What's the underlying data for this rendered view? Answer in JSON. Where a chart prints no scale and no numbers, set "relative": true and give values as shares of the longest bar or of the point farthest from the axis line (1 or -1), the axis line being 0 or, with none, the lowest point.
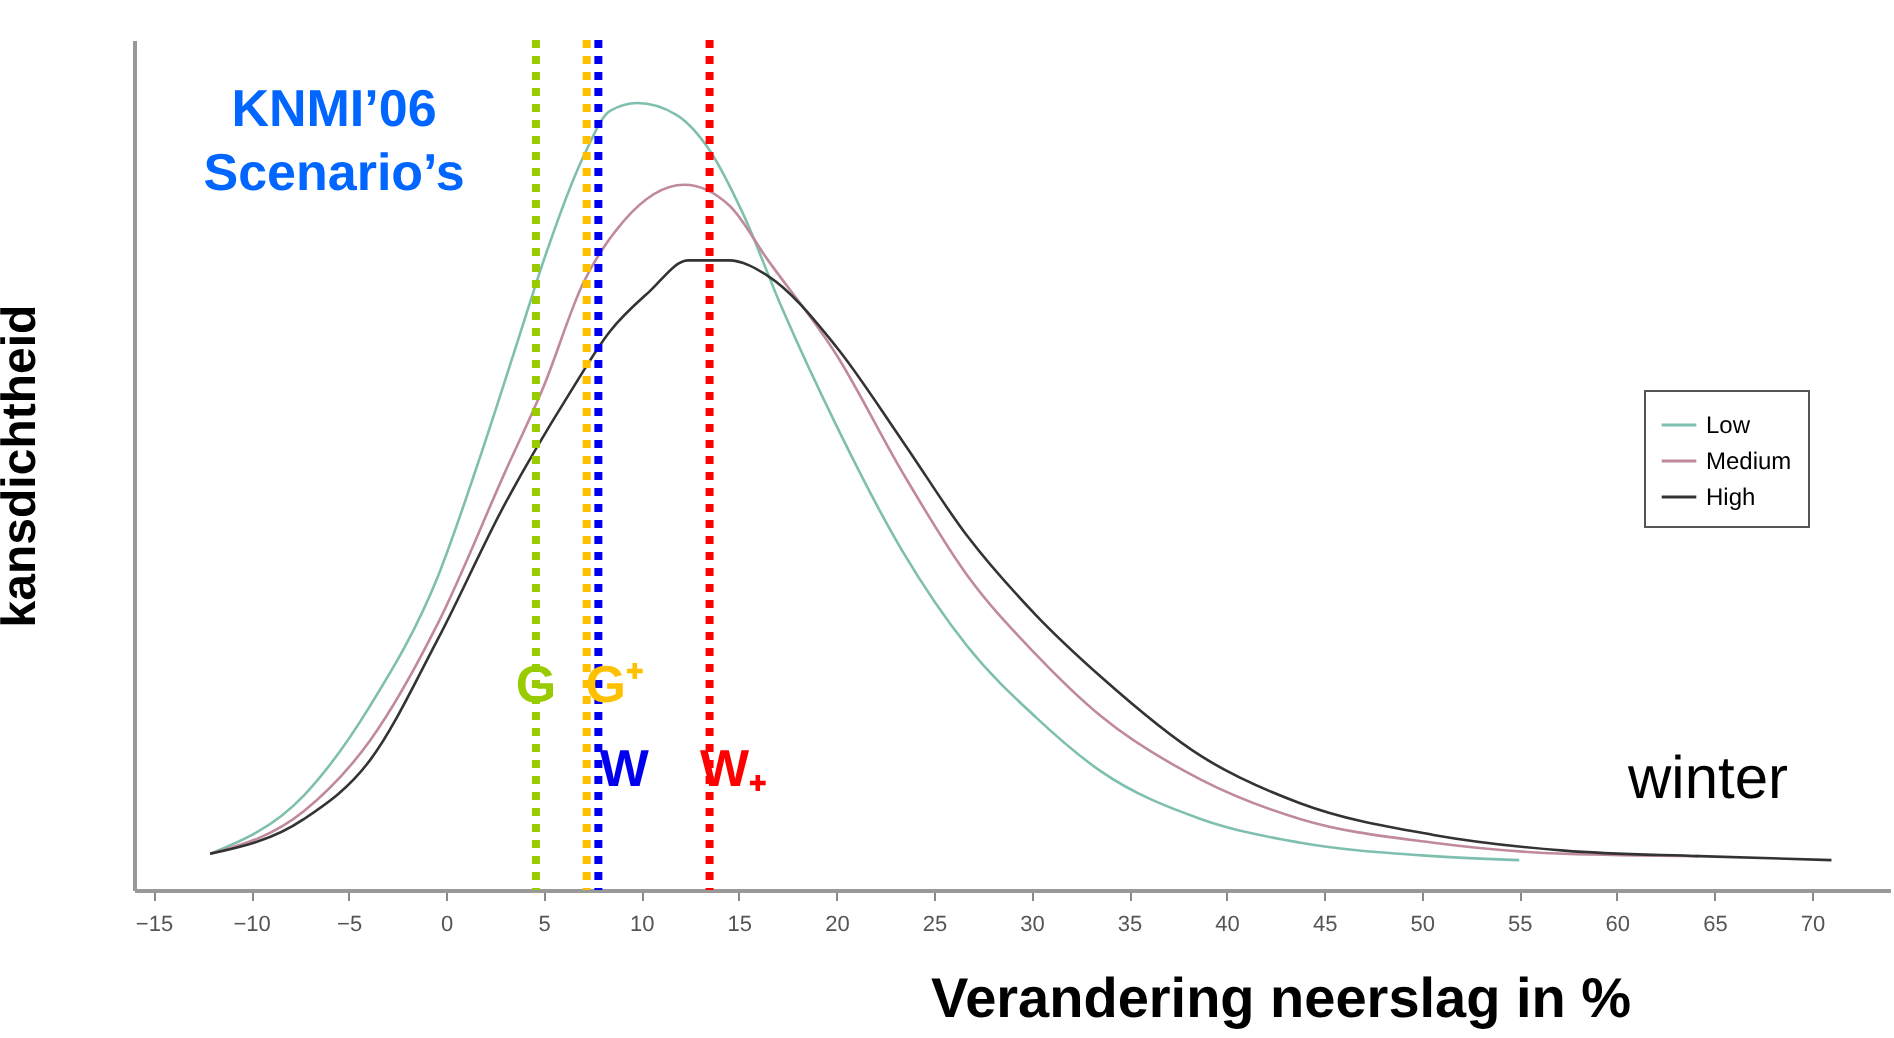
{
  "chart_data": {
    "type": "line",
    "xlabel": "Verandering neerslag in %",
    "ylabel": "kansdichtheid",
    "relative": true,
    "xlim": [
      -16,
      74
    ],
    "xticks": [
      -15,
      -10,
      -5,
      0,
      5,
      10,
      15,
      20,
      25,
      30,
      35,
      40,
      45,
      50,
      55,
      60,
      65,
      70
    ],
    "legend": "top right",
    "grid": false,
    "series": [
      {
        "name": "Low",
        "color": "#7fbfb0",
        "x": [
          -12.1,
          -7.3,
          -3.9,
          -0.4,
          1.6,
          3.7,
          5.0,
          7.0,
          8.4,
          9.8,
          11.8,
          13.5,
          15.2,
          17.2,
          20.0,
          23.4,
          26.7,
          30.2,
          33.6,
          38.7,
          43.8,
          50.6,
          55
        ],
        "values": [
          0.046,
          0.12,
          0.234,
          0.4,
          0.54,
          0.7,
          0.8,
          0.93,
          0.99,
          1.0,
          0.985,
          0.94,
          0.86,
          0.74,
          0.59,
          0.43,
          0.31,
          0.22,
          0.15,
          0.09,
          0.06,
          0.043,
          0.038
        ]
      },
      {
        "name": "Medium",
        "color": "#c08a9a",
        "x": [
          -12.1,
          -7.3,
          -3.9,
          -0.4,
          3.0,
          5.0,
          7.0,
          9.1,
          12.2,
          14.5,
          16.5,
          20.0,
          23.4,
          26.7,
          30.2,
          33.6,
          38.7,
          43.8,
          50.6,
          57.3,
          64.2
        ],
        "values": [
          0.046,
          0.1,
          0.19,
          0.34,
          0.53,
          0.64,
          0.77,
          0.85,
          0.896,
          0.87,
          0.8,
          0.68,
          0.53,
          0.4,
          0.3,
          0.22,
          0.14,
          0.09,
          0.06,
          0.046,
          0.043
        ]
      },
      {
        "name": "High",
        "color": "#333333",
        "x": [
          -12.1,
          -7.3,
          -3.9,
          -0.4,
          3.0,
          6.3,
          8.4,
          10.4,
          12.4,
          14.5,
          16.5,
          20.0,
          23.4,
          26.7,
          30.2,
          33.6,
          38.7,
          43.8,
          50.6,
          57.3,
          64.2,
          71
        ],
        "values": [
          0.046,
          0.09,
          0.165,
          0.32,
          0.49,
          0.63,
          0.71,
          0.76,
          0.8,
          0.8,
          0.78,
          0.69,
          0.57,
          0.45,
          0.35,
          0.27,
          0.17,
          0.11,
          0.07,
          0.05,
          0.043,
          0.038
        ]
      }
    ],
    "ref_lines": [
      {
        "axis": "x",
        "value": 4.6,
        "label": "G",
        "color": "#99cc00",
        "line_style": "dotted"
      },
      {
        "axis": "x",
        "value": 7.2,
        "label": "G⁺",
        "color": "#ffc000",
        "line_style": "dotted"
      },
      {
        "axis": "x",
        "value": 7.8,
        "label": "W",
        "color": "#0000ee",
        "line_style": "dotted"
      },
      {
        "axis": "x",
        "value": 13.5,
        "label": "W₊",
        "color": "#ff0000",
        "line_style": "dotted"
      }
    ],
    "annotations": [
      "KNMI’06 Scenario’s",
      "winter"
    ]
  }
}
